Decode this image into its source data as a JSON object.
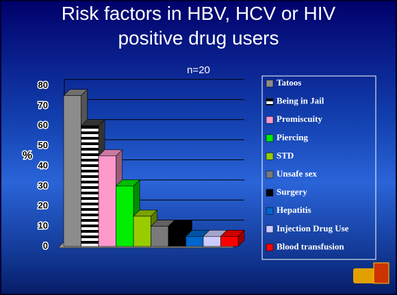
{
  "chart_data": {
    "type": "bar3d",
    "title": "Risk factors in HBV, HCV or HIV positive drug users",
    "subtitle": "n=20",
    "y_label": "%",
    "categories": [
      "Tatoos",
      "Being in Jail",
      "Promiscuity",
      "Piercing",
      "STD",
      "Unsafe sex",
      "Surgery",
      "Hepatitis",
      "Injection Drug Use",
      "Blood transfusion"
    ],
    "values": [
      75,
      60,
      45,
      30,
      15,
      10,
      10,
      5,
      5,
      5
    ],
    "colors": [
      "#8c8c8c",
      "url(#stripes)",
      "#ff99cc",
      "#00ee00",
      "#99cc00",
      "#7a7a7a",
      "#000000",
      "#0066cc",
      "#ccccff",
      "#ff0000"
    ],
    "ylim": [
      0,
      80
    ],
    "yticks": [
      0,
      10,
      20,
      30,
      40,
      50,
      60,
      70,
      80
    ],
    "grid": true
  }
}
